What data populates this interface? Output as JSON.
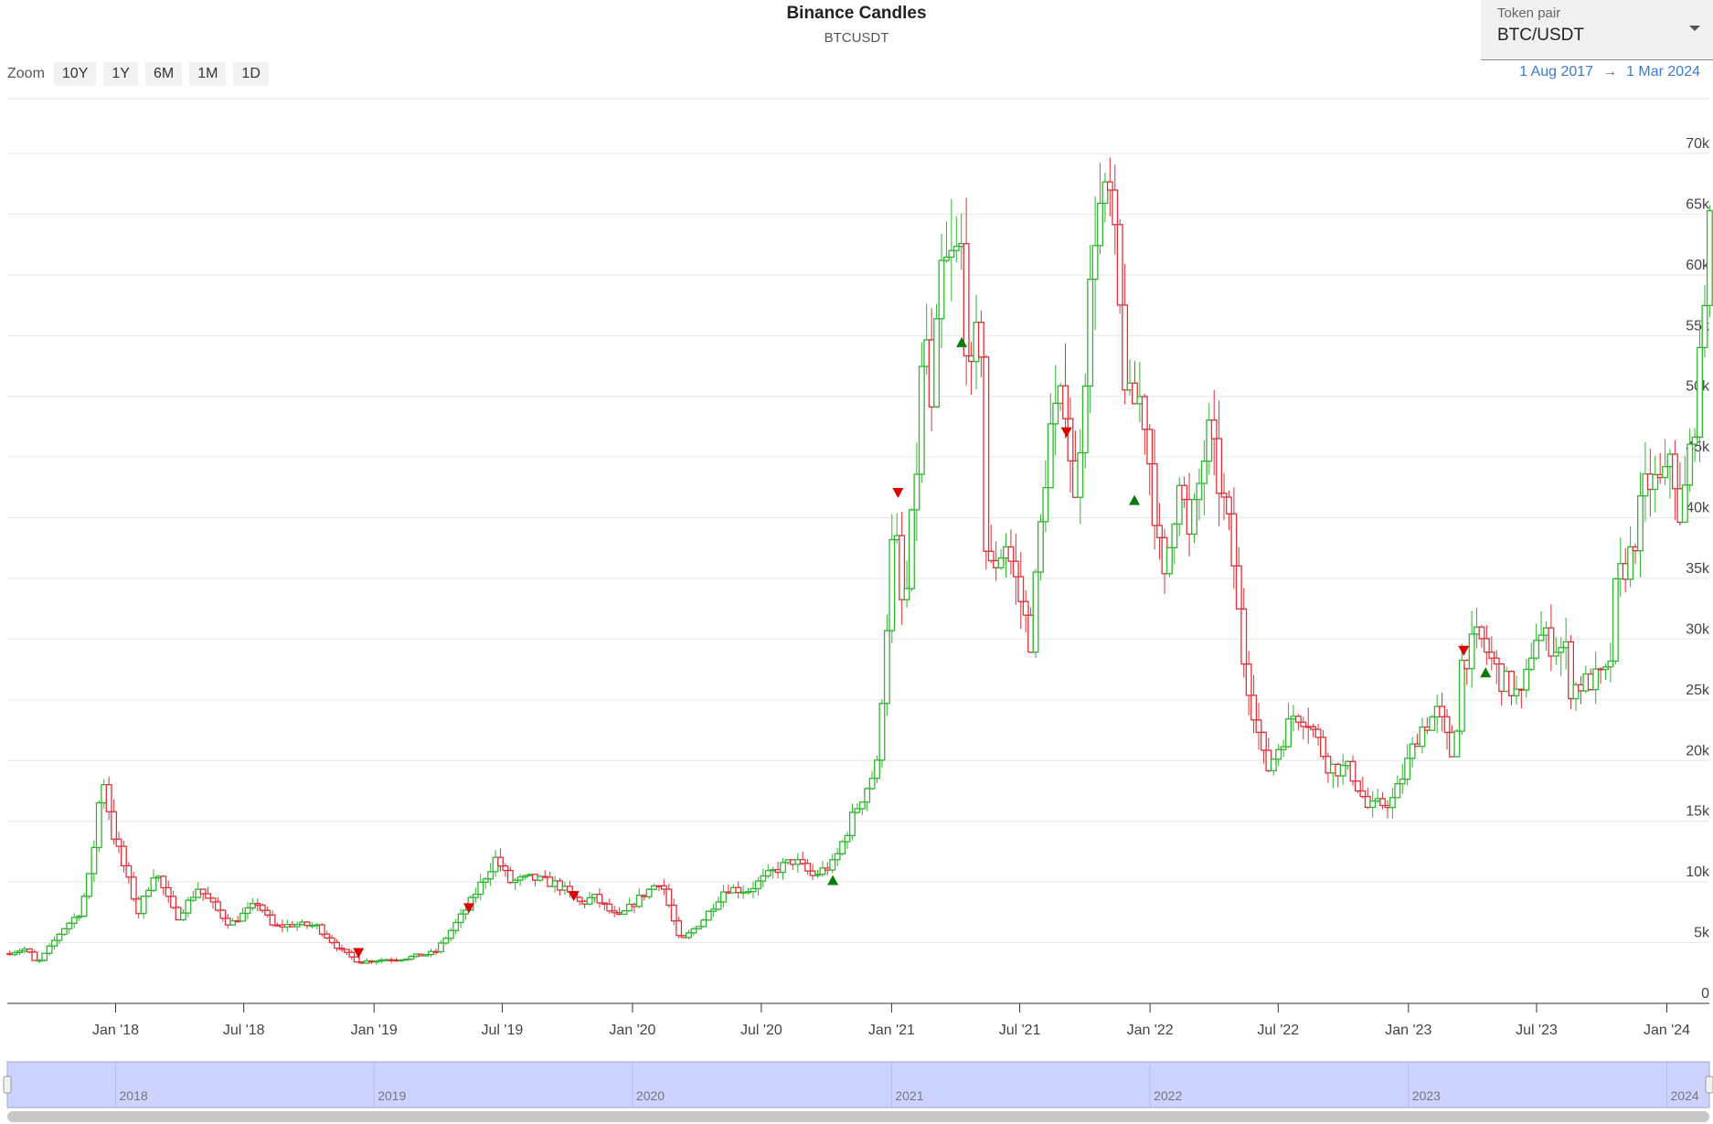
{
  "header": {
    "title": "Binance Candles",
    "subtitle": "BTCUSDT"
  },
  "zoom": {
    "label": "Zoom",
    "buttons": [
      "10Y",
      "1Y",
      "6M",
      "1M",
      "1D"
    ]
  },
  "token_selector": {
    "label": "Token pair",
    "value": "BTC/USDT"
  },
  "range": {
    "from": "1 Aug 2017",
    "arrow": "→",
    "to": "1 Mar 2024"
  },
  "colors": {
    "up": "#2fb52f",
    "down": "#e0303a",
    "grid": "#e6e6e6",
    "navigator": "#ccd3ff",
    "marker_up": "#0a7a0a",
    "marker_down": "#e00000"
  },
  "chart_data": {
    "type": "candlestick",
    "title": "Binance Candles",
    "subtitle": "BTCUSDT",
    "ylim": [
      0,
      70000
    ],
    "y_ticks": [
      0,
      5000,
      10000,
      15000,
      20000,
      25000,
      30000,
      35000,
      40000,
      45000,
      50000,
      55000,
      60000,
      65000,
      70000
    ],
    "y_tick_labels": [
      "0",
      "5k",
      "10k",
      "15k",
      "20k",
      "25k",
      "30k",
      "35k",
      "40k",
      "45k",
      "50k",
      "55k",
      "60k",
      "65k",
      "70k"
    ],
    "x_range": [
      "2017-08-01",
      "2024-03-01"
    ],
    "x_ticks": [
      {
        "date": "2018-01-01",
        "label": "Jan '18"
      },
      {
        "date": "2018-07-01",
        "label": "Jul '18"
      },
      {
        "date": "2019-01-01",
        "label": "Jan '19"
      },
      {
        "date": "2019-07-01",
        "label": "Jul '19"
      },
      {
        "date": "2020-01-01",
        "label": "Jan '20"
      },
      {
        "date": "2020-07-01",
        "label": "Jul '20"
      },
      {
        "date": "2021-01-01",
        "label": "Jan '21"
      },
      {
        "date": "2021-07-01",
        "label": "Jul '21"
      },
      {
        "date": "2022-01-01",
        "label": "Jan '22"
      },
      {
        "date": "2022-07-01",
        "label": "Jul '22"
      },
      {
        "date": "2023-01-01",
        "label": "Jan '23"
      },
      {
        "date": "2023-07-01",
        "label": "Jul '23"
      },
      {
        "date": "2024-01-01",
        "label": "Jan '24"
      }
    ],
    "navigator_labels": [
      {
        "date": "2018-01-01",
        "label": "2018"
      },
      {
        "date": "2019-01-01",
        "label": "2019"
      },
      {
        "date": "2020-01-01",
        "label": "2020"
      },
      {
        "date": "2021-01-01",
        "label": "2021"
      },
      {
        "date": "2022-01-01",
        "label": "2022"
      },
      {
        "date": "2023-01-01",
        "label": "2023"
      },
      {
        "date": "2024-01-01",
        "label": "2024"
      }
    ],
    "price_path": [
      [
        "2017-08-01",
        4100
      ],
      [
        "2017-09-01",
        4500
      ],
      [
        "2017-09-15",
        3200
      ],
      [
        "2017-10-01",
        4400
      ],
      [
        "2017-10-20",
        6000
      ],
      [
        "2017-11-15",
        7500
      ],
      [
        "2017-12-01",
        11000
      ],
      [
        "2017-12-17",
        19000
      ],
      [
        "2018-01-01",
        14000
      ],
      [
        "2018-01-15",
        11500
      ],
      [
        "2018-02-06",
        7500
      ],
      [
        "2018-03-01",
        11000
      ],
      [
        "2018-04-01",
        7000
      ],
      [
        "2018-05-01",
        9500
      ],
      [
        "2018-06-15",
        6500
      ],
      [
        "2018-07-25",
        8300
      ],
      [
        "2018-08-15",
        6300
      ],
      [
        "2018-09-15",
        6500
      ],
      [
        "2018-10-15",
        6400
      ],
      [
        "2018-11-20",
        4300
      ],
      [
        "2018-12-15",
        3400
      ],
      [
        "2019-01-15",
        3600
      ],
      [
        "2019-02-15",
        3700
      ],
      [
        "2019-04-01",
        4200
      ],
      [
        "2019-05-15",
        7800
      ],
      [
        "2019-06-26",
        12000
      ],
      [
        "2019-07-15",
        10000
      ],
      [
        "2019-08-15",
        10300
      ],
      [
        "2019-09-20",
        9800
      ],
      [
        "2019-10-25",
        8200
      ],
      [
        "2019-11-10",
        8800
      ],
      [
        "2019-12-15",
        7000
      ],
      [
        "2020-01-15",
        8700
      ],
      [
        "2020-02-14",
        10200
      ],
      [
        "2020-03-12",
        5000
      ],
      [
        "2020-04-15",
        7000
      ],
      [
        "2020-05-15",
        9500
      ],
      [
        "2020-06-15",
        9300
      ],
      [
        "2020-07-25",
        11000
      ],
      [
        "2020-08-20",
        11800
      ],
      [
        "2020-09-15",
        10500
      ],
      [
        "2020-10-15",
        11500
      ],
      [
        "2020-11-15",
        16000
      ],
      [
        "2020-12-15",
        19500
      ],
      [
        "2021-01-08",
        40000
      ],
      [
        "2021-01-22",
        31000
      ],
      [
        "2021-02-10",
        45000
      ],
      [
        "2021-02-21",
        57000
      ],
      [
        "2021-03-01",
        47000
      ],
      [
        "2021-03-15",
        60000
      ],
      [
        "2021-04-14",
        62000
      ],
      [
        "2021-04-25",
        50000
      ],
      [
        "2021-05-10",
        57000
      ],
      [
        "2021-05-19",
        35000
      ],
      [
        "2021-06-15",
        38000
      ],
      [
        "2021-07-20",
        30000
      ],
      [
        "2021-08-15",
        47000
      ],
      [
        "2021-09-07",
        50000
      ],
      [
        "2021-09-21",
        41000
      ],
      [
        "2021-10-20",
        65000
      ],
      [
        "2021-11-10",
        66000
      ],
      [
        "2021-12-04",
        49000
      ],
      [
        "2021-12-25",
        50000
      ],
      [
        "2022-01-24",
        34000
      ],
      [
        "2022-02-15",
        44000
      ],
      [
        "2022-03-01",
        38000
      ],
      [
        "2022-03-28",
        47000
      ],
      [
        "2022-04-30",
        38000
      ],
      [
        "2022-05-15",
        29000
      ],
      [
        "2022-06-18",
        19000
      ],
      [
        "2022-07-28",
        24000
      ],
      [
        "2022-08-15",
        23500
      ],
      [
        "2022-09-15",
        19500
      ],
      [
        "2022-10-15",
        19200
      ],
      [
        "2022-11-09",
        16000
      ],
      [
        "2022-12-15",
        16800
      ],
      [
        "2023-01-20",
        22500
      ],
      [
        "2023-02-15",
        24000
      ],
      [
        "2023-03-10",
        20000
      ],
      [
        "2023-03-20",
        28000
      ],
      [
        "2023-04-14",
        30200
      ],
      [
        "2023-05-15",
        26800
      ],
      [
        "2023-06-15",
        25000
      ],
      [
        "2023-07-01",
        30500
      ],
      [
        "2023-08-16",
        29000
      ],
      [
        "2023-08-20",
        26000
      ],
      [
        "2023-10-15",
        27000
      ],
      [
        "2023-10-25",
        34500
      ],
      [
        "2023-11-15",
        37000
      ],
      [
        "2023-12-08",
        43000
      ],
      [
        "2024-01-01",
        42500
      ],
      [
        "2024-01-11",
        46500
      ],
      [
        "2024-01-23",
        39000
      ],
      [
        "2024-02-10",
        47000
      ],
      [
        "2024-02-20",
        52000
      ],
      [
        "2024-03-01",
        63000
      ]
    ],
    "markers": [
      {
        "date": "2018-12-10",
        "value": 4100,
        "dir": "down"
      },
      {
        "date": "2019-05-15",
        "value": 7800,
        "dir": "down"
      },
      {
        "date": "2019-10-10",
        "value": 8800,
        "dir": "down"
      },
      {
        "date": "2020-10-10",
        "value": 10200,
        "dir": "up"
      },
      {
        "date": "2021-01-10",
        "value": 42000,
        "dir": "down"
      },
      {
        "date": "2021-04-10",
        "value": 54500,
        "dir": "up"
      },
      {
        "date": "2021-09-05",
        "value": 47000,
        "dir": "down"
      },
      {
        "date": "2021-12-10",
        "value": 41500,
        "dir": "up"
      },
      {
        "date": "2023-03-20",
        "value": 29000,
        "dir": "down"
      },
      {
        "date": "2023-04-20",
        "value": 27300,
        "dir": "up"
      }
    ]
  }
}
